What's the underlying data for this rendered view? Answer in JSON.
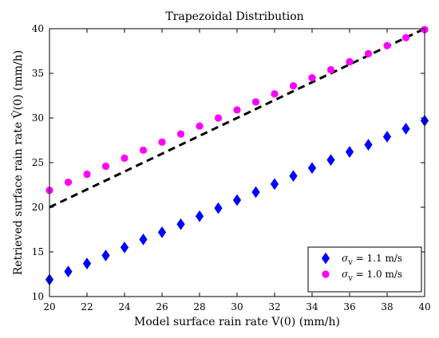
{
  "chart_data": {
    "type": "scatter",
    "title": "Trapezoidal Distribution",
    "xlabel": "Model surface rain rate V(0) (mm/h)",
    "ylabel": "Retrieved surface rain rate V̂(0) (mm/h)",
    "xlim": [
      20,
      40
    ],
    "ylim": [
      10,
      40
    ],
    "xticks": [
      20,
      22,
      24,
      26,
      28,
      30,
      32,
      34,
      36,
      38,
      40
    ],
    "yticks": [
      10,
      15,
      20,
      25,
      30,
      35,
      40
    ],
    "grid": false,
    "legend_position": "bottom-right",
    "reference_line": {
      "style": "dashed",
      "color": "#000000",
      "x": [
        20,
        40
      ],
      "y": [
        20,
        40
      ]
    },
    "series": [
      {
        "name": "σv = 1.1 m/s",
        "sigma_symbol": "σ",
        "sigma_sub": "v",
        "sigma_rest": " = 1.1 m/s",
        "marker": "diamond",
        "color": "#0000ff",
        "x": [
          20,
          21,
          22,
          23,
          24,
          25,
          26,
          27,
          28,
          29,
          30,
          31,
          32,
          33,
          34,
          35,
          36,
          37,
          38,
          39,
          40
        ],
        "y": [
          11.9,
          12.8,
          13.7,
          14.6,
          15.5,
          16.4,
          17.2,
          18.1,
          19.0,
          19.9,
          20.8,
          21.7,
          22.6,
          23.5,
          24.4,
          25.3,
          26.2,
          27.0,
          27.9,
          28.8,
          29.7
        ]
      },
      {
        "name": "σv = 1.0 m/s",
        "sigma_symbol": "σ",
        "sigma_sub": "v",
        "sigma_rest": " = 1.0 m/s",
        "marker": "circle",
        "color": "#ff00ff",
        "x": [
          20,
          21,
          22,
          23,
          24,
          25,
          26,
          27,
          28,
          29,
          30,
          31,
          32,
          33,
          34,
          35,
          36,
          37,
          38,
          39,
          40
        ],
        "y": [
          21.9,
          22.8,
          23.7,
          24.6,
          25.5,
          26.4,
          27.3,
          28.2,
          29.1,
          30.0,
          30.9,
          31.8,
          32.7,
          33.6,
          34.5,
          35.4,
          36.3,
          37.2,
          38.1,
          39.0,
          39.9
        ]
      }
    ]
  }
}
